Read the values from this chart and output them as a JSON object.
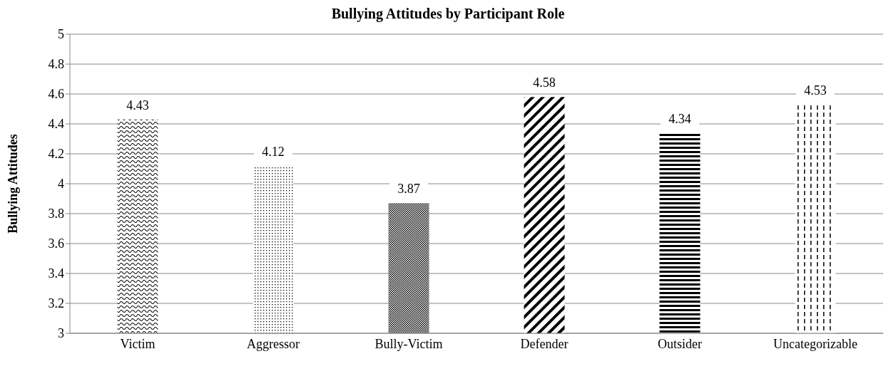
{
  "chart_data": {
    "type": "bar",
    "title": "Bullying Attitudes by Participant Role",
    "ylabel": "Bullying Attitudes",
    "categories": [
      "Victim",
      "Aggressor",
      "Bully-Victim",
      "Defender",
      "Outsider",
      "Uncategorizable"
    ],
    "values": [
      4.43,
      4.12,
      3.87,
      4.58,
      4.34,
      4.53
    ],
    "colors": [
      "#000000",
      "#000000",
      "#000000",
      "#000000",
      "#000000",
      "#000000"
    ],
    "ylim": [
      3,
      5
    ],
    "yticks": [
      3,
      3.2,
      3.4,
      3.6,
      3.8,
      4,
      4.2,
      4.4,
      4.6,
      4.8,
      5
    ],
    "grid": "y",
    "data_labels": true
  }
}
